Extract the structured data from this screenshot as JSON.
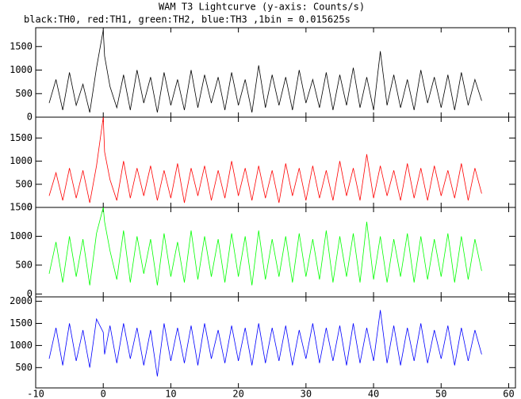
{
  "title": "WAM T3 Lightcurve (y-axis: Counts/s)",
  "subtitle": "black:TH0, red:TH1, green:TH2, blue:TH3 ,1bin = 0.015625s",
  "x": [
    -8,
    -7,
    -6,
    -5,
    -4,
    -3,
    -2,
    -1,
    0,
    0.2,
    1,
    2,
    3,
    4,
    5,
    6,
    7,
    8,
    9,
    10,
    11,
    12,
    13,
    14,
    15,
    16,
    17,
    18,
    19,
    20,
    21,
    22,
    23,
    24,
    25,
    26,
    27,
    28,
    29,
    30,
    31,
    32,
    33,
    34,
    35,
    36,
    37,
    38,
    39,
    40,
    41,
    42,
    43,
    44,
    45,
    46,
    47,
    48,
    49,
    50,
    51,
    52,
    53,
    54,
    55,
    56
  ],
  "xlim": [
    -10,
    61
  ],
  "xticks": [
    -10,
    0,
    10,
    20,
    30,
    40,
    50,
    60
  ],
  "chart_data": [
    {
      "type": "line",
      "ylim": [
        0,
        1900
      ],
      "yticks": [
        0,
        500,
        1000,
        1500
      ],
      "series": [
        {
          "color": "#000000",
          "values": [
            300,
            800,
            150,
            950,
            250,
            700,
            100,
            1050,
            1850,
            1300,
            650,
            200,
            900,
            150,
            1000,
            300,
            850,
            100,
            950,
            250,
            800,
            150,
            1000,
            200,
            900,
            300,
            850,
            150,
            950,
            250,
            800,
            100,
            1100,
            200,
            900,
            250,
            850,
            150,
            1000,
            300,
            800,
            200,
            950,
            150,
            900,
            250,
            1050,
            200,
            850,
            150,
            1400,
            250,
            900,
            200,
            800,
            150,
            1000,
            300,
            850,
            200,
            900,
            150,
            950,
            250,
            800,
            350
          ]
        }
      ]
    },
    {
      "type": "line",
      "ylim": [
        0,
        1950
      ],
      "yticks": [
        0,
        500,
        1000,
        1500
      ],
      "series": [
        {
          "color": "#ff0000",
          "values": [
            250,
            750,
            150,
            850,
            200,
            800,
            100,
            900,
            1950,
            1200,
            600,
            150,
            1000,
            200,
            850,
            250,
            900,
            150,
            800,
            200,
            950,
            100,
            850,
            250,
            900,
            150,
            800,
            200,
            1000,
            250,
            850,
            150,
            900,
            200,
            800,
            100,
            950,
            250,
            850,
            150,
            900,
            200,
            800,
            150,
            1000,
            250,
            850,
            150,
            1150,
            200,
            900,
            250,
            800,
            150,
            950,
            200,
            850,
            150,
            900,
            250,
            800,
            200,
            950,
            150,
            850,
            300
          ]
        }
      ]
    },
    {
      "type": "line",
      "ylim": [
        -50,
        1500
      ],
      "yticks": [
        0,
        500,
        1000,
        1500
      ],
      "series": [
        {
          "color": "#00ff00",
          "values": [
            350,
            900,
            200,
            1000,
            300,
            950,
            150,
            1050,
            1500,
            1250,
            750,
            250,
            1100,
            200,
            1000,
            350,
            950,
            150,
            1050,
            300,
            900,
            200,
            1100,
            250,
            1000,
            300,
            950,
            200,
            1050,
            300,
            1000,
            150,
            1100,
            250,
            950,
            300,
            1000,
            200,
            1050,
            300,
            950,
            250,
            1100,
            200,
            1000,
            300,
            1050,
            200,
            1250,
            250,
            1000,
            200,
            950,
            300,
            1050,
            200,
            1000,
            250,
            950,
            300,
            1050,
            200,
            1000,
            250,
            950,
            400
          ]
        }
      ]
    },
    {
      "type": "line",
      "ylim": [
        40,
        2100
      ],
      "yticks": [
        500,
        1000,
        1500,
        2000
      ],
      "series": [
        {
          "color": "#0000ff",
          "values": [
            700,
            1400,
            550,
            1500,
            650,
            1350,
            500,
            1600,
            1300,
            800,
            1450,
            600,
            1500,
            700,
            1400,
            550,
            1350,
            300,
            1500,
            650,
            1400,
            600,
            1450,
            550,
            1500,
            700,
            1350,
            600,
            1450,
            650,
            1400,
            550,
            1500,
            600,
            1400,
            650,
            1450,
            550,
            1350,
            700,
            1500,
            600,
            1400,
            650,
            1450,
            550,
            1500,
            600,
            1400,
            650,
            1800,
            600,
            1450,
            550,
            1400,
            650,
            1500,
            600,
            1350,
            700,
            1450,
            550,
            1400,
            650,
            1350,
            800
          ]
        }
      ]
    }
  ]
}
